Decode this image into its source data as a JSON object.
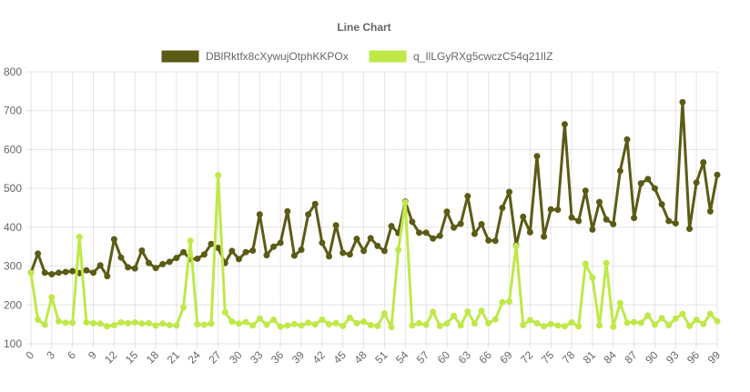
{
  "chart_data": {
    "type": "line",
    "title": "Line Chart",
    "categories": [
      0,
      1,
      2,
      3,
      4,
      5,
      6,
      7,
      8,
      9,
      10,
      11,
      12,
      13,
      14,
      15,
      16,
      17,
      18,
      19,
      20,
      21,
      22,
      23,
      24,
      25,
      26,
      27,
      28,
      29,
      30,
      31,
      32,
      33,
      34,
      35,
      36,
      37,
      38,
      39,
      40,
      41,
      42,
      43,
      44,
      45,
      46,
      47,
      48,
      49,
      50,
      51,
      52,
      53,
      54,
      55,
      56,
      57,
      58,
      59,
      60,
      61,
      62,
      63,
      64,
      65,
      66,
      67,
      68,
      69,
      70,
      71,
      72,
      73,
      74,
      75,
      76,
      77,
      78,
      79,
      80,
      81,
      82,
      83,
      84,
      85,
      86,
      87,
      88,
      89,
      90,
      91,
      92,
      93,
      94,
      95,
      96,
      97,
      98,
      99
    ],
    "tick_labels": [
      "0",
      "3",
      "6",
      "9",
      "12",
      "15",
      "18",
      "21",
      "24",
      "27",
      "30",
      "33",
      "36",
      "39",
      "42",
      "45",
      "48",
      "51",
      "54",
      "57",
      "60",
      "63",
      "66",
      "69",
      "72",
      "75",
      "78",
      "81",
      "84",
      "87",
      "90",
      "93",
      "96",
      "99"
    ],
    "ylim": [
      100,
      800
    ],
    "yticks": [
      100,
      200,
      300,
      400,
      500,
      600,
      700,
      800
    ],
    "grid": true,
    "legend_position": "top",
    "series": [
      {
        "name": "DBlRktfx8cXywujOtphKKPOx",
        "color": "#5b5b16",
        "values": [
          283,
          332,
          283,
          279,
          283,
          285,
          287,
          282,
          289,
          283,
          302,
          274,
          369,
          322,
          297,
          294,
          340,
          308,
          295,
          305,
          311,
          321,
          336,
          318,
          319,
          330,
          357,
          347,
          308,
          339,
          318,
          336,
          340,
          433,
          328,
          350,
          360,
          441,
          327,
          342,
          433,
          460,
          360,
          325,
          405,
          334,
          330,
          370,
          339,
          372,
          352,
          339,
          403,
          385,
          466,
          414,
          386,
          386,
          371,
          378,
          440,
          399,
          409,
          480,
          383,
          408,
          366,
          365,
          450,
          491,
          354,
          427,
          387,
          583,
          376,
          446,
          445,
          665,
          425,
          416,
          494,
          394,
          465,
          420,
          408,
          545,
          626,
          424,
          513,
          524,
          500,
          459,
          416,
          410,
          722,
          396,
          515,
          567,
          441,
          535
        ]
      },
      {
        "name": "q_IlLGyRXg5cwczC54q21lIZ",
        "color": "#bfe948",
        "values": [
          282,
          162,
          149,
          220,
          158,
          154,
          154,
          375,
          155,
          153,
          152,
          145,
          148,
          155,
          153,
          155,
          152,
          153,
          147,
          152,
          148,
          147,
          194,
          365,
          150,
          149,
          152,
          534,
          181,
          157,
          152,
          156,
          147,
          165,
          149,
          162,
          144,
          147,
          151,
          147,
          154,
          150,
          162,
          150,
          153,
          146,
          167,
          153,
          157,
          148,
          146,
          178,
          143,
          342,
          464,
          147,
          153,
          149,
          182,
          146,
          152,
          172,
          147,
          183,
          152,
          185,
          153,
          163,
          207,
          209,
          352,
          148,
          161,
          153,
          145,
          151,
          147,
          145,
          155,
          145,
          306,
          270,
          147,
          308,
          144,
          205,
          154,
          156,
          154,
          173,
          149,
          166,
          148,
          165,
          177,
          146,
          162,
          151,
          177,
          158
        ]
      }
    ]
  }
}
